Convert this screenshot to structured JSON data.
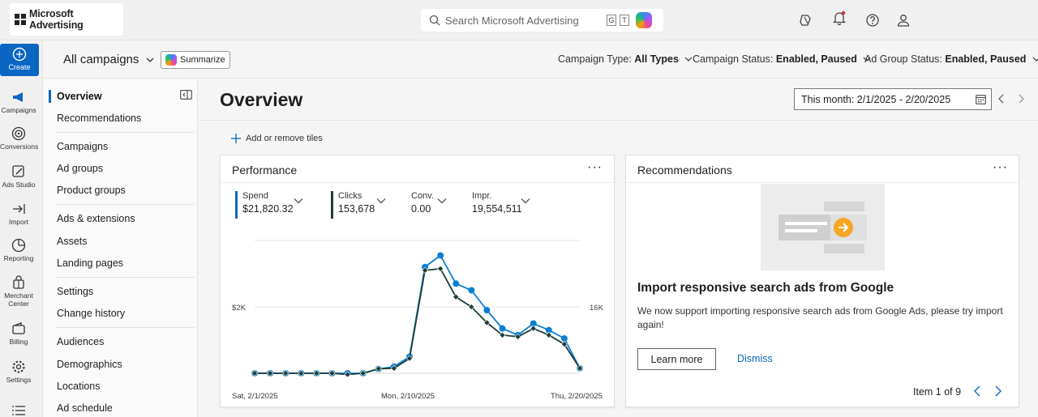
{
  "app": {
    "logo_text": "Microsoft Advertising"
  },
  "search": {
    "placeholder": "Search Microsoft Advertising",
    "shortcut_keys": [
      "G",
      "T"
    ]
  },
  "header_icons": [
    "copilot-app-icon",
    "bell-icon",
    "help-icon",
    "person-icon"
  ],
  "rail": {
    "create_label": "Create",
    "items": [
      {
        "label": "Campaigns",
        "icon": "megaphone-icon"
      },
      {
        "label": "Conversions",
        "icon": "target-icon"
      },
      {
        "label": "Ads Studio",
        "icon": "ads-studio-icon"
      },
      {
        "label": "Import",
        "icon": "import-icon"
      },
      {
        "label": "Reporting",
        "icon": "reporting-icon"
      },
      {
        "label": "Merchant Center",
        "icon": "bag-icon"
      },
      {
        "label": "Billing",
        "icon": "wallet-icon"
      },
      {
        "label": "Settings",
        "icon": "gear-icon"
      }
    ]
  },
  "subheader": {
    "scope": "All campaigns",
    "summarize": "Summarize",
    "filters": [
      {
        "label": "Campaign Type:",
        "value": "All Types"
      },
      {
        "label": "Campaign Status:",
        "value": "Enabled, Paused"
      },
      {
        "label": "Ad Group Status:",
        "value": "Enabled, Paused"
      }
    ]
  },
  "nav": {
    "groups": [
      [
        "Overview",
        "Recommendations"
      ],
      [
        "Campaigns",
        "Ad groups",
        "Product groups"
      ],
      [
        "Ads & extensions",
        "Assets",
        "Landing pages"
      ],
      [
        "Settings",
        "Change history"
      ],
      [
        "Audiences",
        "Demographics",
        "Locations",
        "Ad schedule"
      ]
    ],
    "active": "Overview"
  },
  "main": {
    "title": "Overview",
    "date_range": "This month: 2/1/2025 - 2/20/2025",
    "add_tiles": "Add or remove tiles"
  },
  "performance": {
    "title": "Performance",
    "metrics": [
      {
        "label": "Spend",
        "value": "$21,820.32",
        "color": "#0b66c3"
      },
      {
        "label": "Clicks",
        "value": "153,678",
        "color": "#1c3d38"
      },
      {
        "label": "Conv.",
        "value": "0.00"
      },
      {
        "label": "Impr.",
        "value": "19,554,511"
      }
    ]
  },
  "chart_data": {
    "type": "line",
    "x_labels": [
      "Sat, 2/1/2025",
      "Mon, 2/10/2025",
      "Thu, 2/20/2025"
    ],
    "y_left_tick": "$2K",
    "y_right_tick": "16K",
    "y_left_range": [
      0,
      4000
    ],
    "y_right_range": [
      0,
      32000
    ],
    "series": [
      {
        "name": "Spend",
        "color": "#0b7fd4",
        "values": [
          0,
          0,
          0,
          0,
          0,
          0,
          0,
          0,
          130,
          200,
          500,
          3200,
          3550,
          2700,
          2500,
          1900,
          1350,
          1150,
          1500,
          1300,
          1050,
          150
        ]
      },
      {
        "name": "Clicks",
        "color": "#1c3d38",
        "values": [
          0,
          0,
          0,
          0,
          0,
          0,
          -300,
          0,
          1100,
          1200,
          3600,
          24800,
          25200,
          18400,
          16000,
          12200,
          9200,
          8800,
          10800,
          9200,
          7000,
          1200
        ]
      }
    ]
  },
  "recommendations": {
    "title": "Recommendations",
    "heading": "Import responsive search ads from Google",
    "body": "We now support importing responsive search ads from Google Ads, please try import again!",
    "learn_more": "Learn more",
    "dismiss": "Dismiss",
    "pager": "Item 1 of 9"
  }
}
